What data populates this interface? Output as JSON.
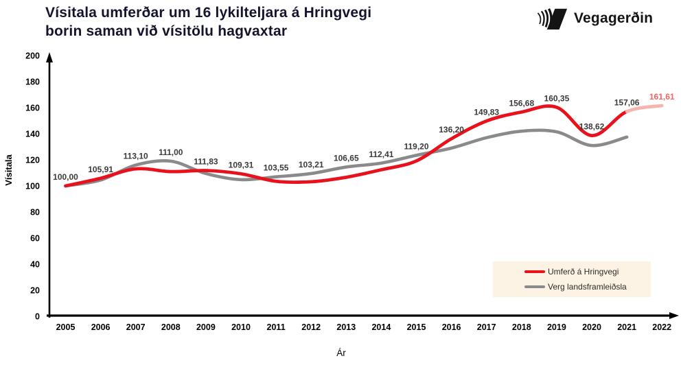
{
  "header": {
    "title_line1": "Vísitala umferðar um 16 lykilteljara á Hringvegi",
    "title_line2": "borin saman við vísitölu hagvaxtar",
    "logo_text": "Vegagerðin"
  },
  "colors": {
    "traffic_red": "#e8111c",
    "forecast_pink": "#f5b4ad",
    "forecast_label": "#f26363",
    "gdp_gray": "#8a8a8a",
    "data_label": "#3a3a3a",
    "axis": "#000000",
    "legend_bg": "#fdf3e4",
    "title_text": "#14142d"
  },
  "chart_data": {
    "type": "line",
    "title": "Vísitala umferðar um 16 lykilteljara á Hringvegi borin saman við vísitölu hagvaxtar",
    "xlabel": "Ár",
    "ylabel": "Vísitala",
    "x": [
      2005,
      2006,
      2007,
      2008,
      2009,
      2010,
      2011,
      2012,
      2013,
      2014,
      2015,
      2016,
      2017,
      2018,
      2019,
      2020,
      2021,
      2022
    ],
    "ylim": [
      0,
      200
    ],
    "yticks": [
      0,
      20,
      40,
      60,
      80,
      100,
      120,
      140,
      160,
      180,
      200
    ],
    "grid": false,
    "legend_position": "bottom-right",
    "series": [
      {
        "name": "Umferð á Hringvegi",
        "color": "#e8111c",
        "values": [
          100.0,
          105.91,
          113.1,
          111.0,
          111.83,
          109.31,
          103.55,
          103.21,
          106.65,
          112.41,
          119.2,
          136.2,
          149.83,
          156.68,
          160.35,
          138.62,
          157.06,
          161.61
        ],
        "point_labels": [
          "100,00",
          "105,91",
          "113,10",
          "111,00",
          "111,83",
          "109,31",
          "103,55",
          "103,21",
          "106,65",
          "112,41",
          "119,20",
          "136,20",
          "149,83",
          "156,68",
          "160,35",
          "138,62",
          "157,06",
          "161,61"
        ],
        "forecast_from_index": 16,
        "forecast_color": "#f5b4ad",
        "forecast_label_color": "#f26363"
      },
      {
        "name": "Verg landsframleiðsla",
        "color": "#8a8a8a",
        "values": [
          100,
          104.5,
          116,
          119,
          109.5,
          104.8,
          107,
          109.5,
          114.5,
          117.5,
          123.5,
          129,
          137,
          142,
          141.5,
          131,
          137.5
        ]
      }
    ]
  }
}
